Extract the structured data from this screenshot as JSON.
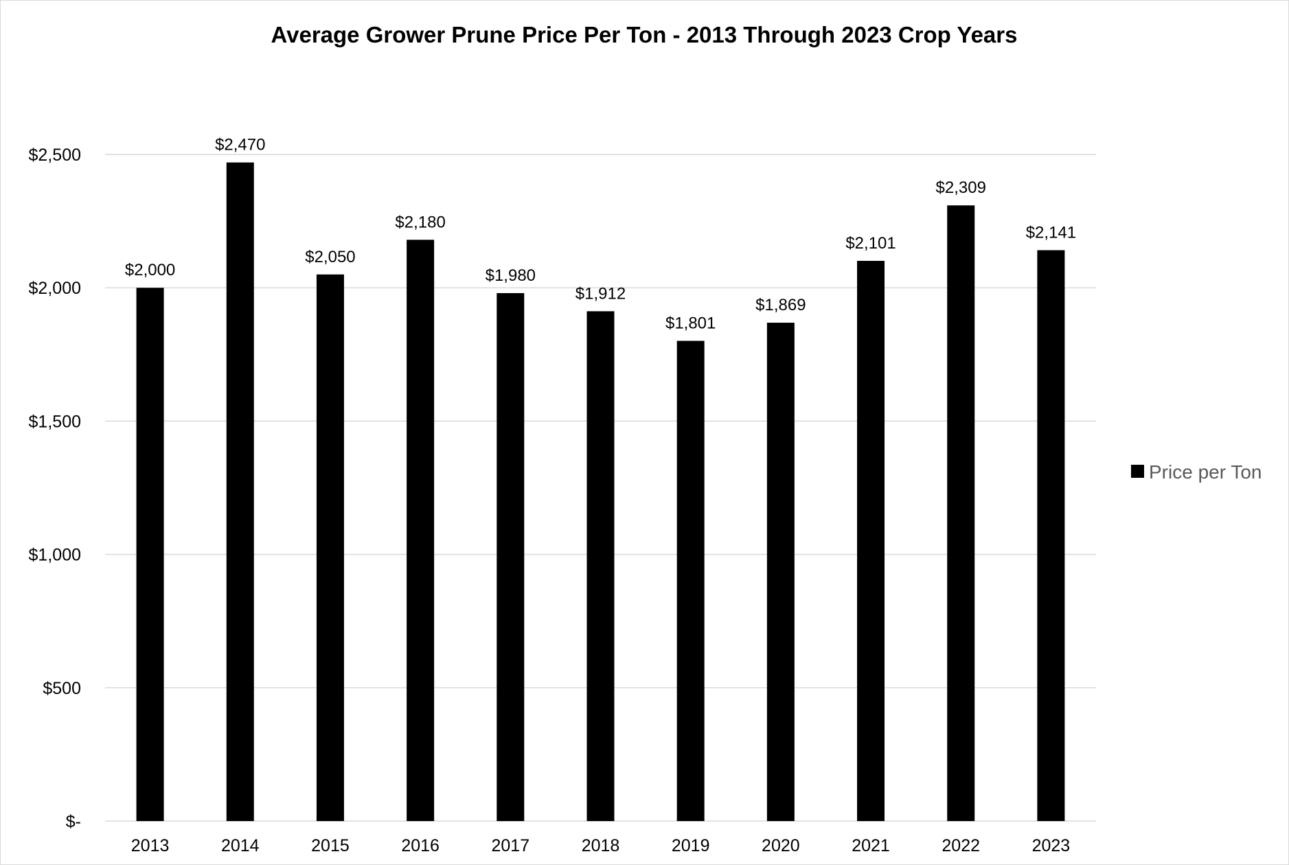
{
  "chart_data": {
    "type": "bar",
    "title": "Average Grower Prune Price Per Ton - 2013 Through 2023 Crop Years",
    "xlabel": "",
    "ylabel": "",
    "categories": [
      "2013",
      "2014",
      "2015",
      "2016",
      "2017",
      "2018",
      "2019",
      "2020",
      "2021",
      "2022",
      "2023"
    ],
    "series": [
      {
        "name": "Price per Ton",
        "values": [
          2000,
          2470,
          2050,
          2180,
          1980,
          1912,
          1801,
          1869,
          2101,
          2309,
          2141
        ],
        "data_labels": [
          "$2,000",
          "$2,470",
          "$2,050",
          "$2,180",
          "$1,980",
          "$1,912",
          "$1,801",
          "$1,869",
          "$2,101",
          "$2,309",
          "$2,141"
        ],
        "color": "#000000"
      }
    ],
    "ylim": [
      0,
      2500
    ],
    "yticks": [
      0,
      500,
      1000,
      1500,
      2000,
      2500
    ],
    "ytick_labels": [
      "$-",
      "$500",
      "$1,000",
      "$1,500",
      "$2,000",
      "$2,500"
    ],
    "grid": true,
    "gridline_color": "#d9d9d9",
    "legend_position": "right"
  }
}
